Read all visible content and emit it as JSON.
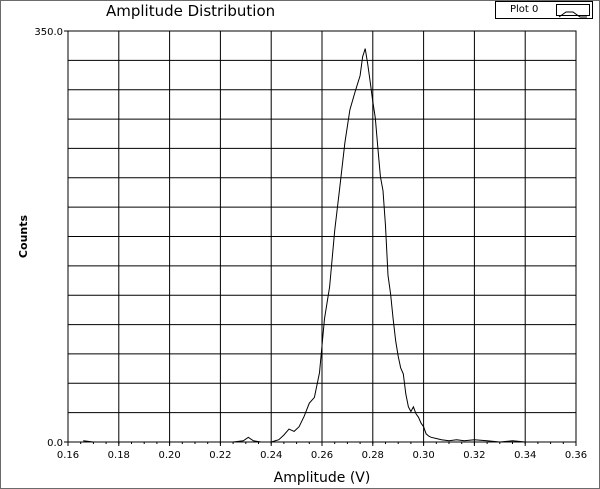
{
  "window": {
    "title": "Amplitude Distribution"
  },
  "legend": {
    "label": "Plot 0"
  },
  "colors": {
    "grid": "#000000",
    "line": "#000000",
    "background": "#ffffff"
  },
  "chart_data": {
    "type": "line",
    "title": "Amplitude Distribution",
    "xlabel": "Amplitude (V)",
    "ylabel": "Counts",
    "xlim": [
      0.16,
      0.36
    ],
    "ylim": [
      0,
      350
    ],
    "grid": true,
    "legend_position": "top-right",
    "x_ticks": [
      "0.16",
      "0.18",
      "0.20",
      "0.22",
      "0.24",
      "0.26",
      "0.28",
      "0.30",
      "0.32",
      "0.34",
      "0.36"
    ],
    "y_ticks": [
      "0.0",
      "350.0"
    ],
    "series": [
      {
        "name": "Plot 0",
        "x": [
          0.166,
          0.17,
          0.175,
          0.18,
          0.185,
          0.19,
          0.195,
          0.2,
          0.205,
          0.21,
          0.215,
          0.22,
          0.225,
          0.229,
          0.231,
          0.233,
          0.236,
          0.24,
          0.243,
          0.245,
          0.247,
          0.249,
          0.251,
          0.253,
          0.255,
          0.257,
          0.259,
          0.261,
          0.263,
          0.265,
          0.267,
          0.269,
          0.271,
          0.273,
          0.275,
          0.276,
          0.277,
          0.278,
          0.279,
          0.28,
          0.281,
          0.282,
          0.283,
          0.284,
          0.285,
          0.286,
          0.287,
          0.288,
          0.289,
          0.29,
          0.291,
          0.292,
          0.293,
          0.294,
          0.295,
          0.296,
          0.297,
          0.298,
          0.299,
          0.3,
          0.301,
          0.302,
          0.303,
          0.305,
          0.307,
          0.31,
          0.313,
          0.316,
          0.32,
          0.325,
          0.33,
          0.335,
          0.34,
          0.343
        ],
        "y": [
          1,
          0,
          0,
          0,
          0,
          0,
          0,
          0,
          0,
          0,
          0,
          0,
          0,
          1,
          4,
          1,
          0,
          0,
          2,
          6,
          11,
          9,
          13,
          22,
          33,
          38,
          59,
          105,
          132,
          180,
          217,
          255,
          283,
          298,
          312,
          328,
          335,
          322,
          306,
          290,
          276,
          250,
          226,
          214,
          184,
          142,
          126,
          105,
          86,
          73,
          63,
          58,
          41,
          30,
          26,
          30,
          24,
          21,
          16,
          13,
          7,
          5,
          4,
          3,
          2,
          1,
          2,
          1,
          2,
          1,
          0,
          1,
          0,
          0
        ]
      }
    ]
  }
}
